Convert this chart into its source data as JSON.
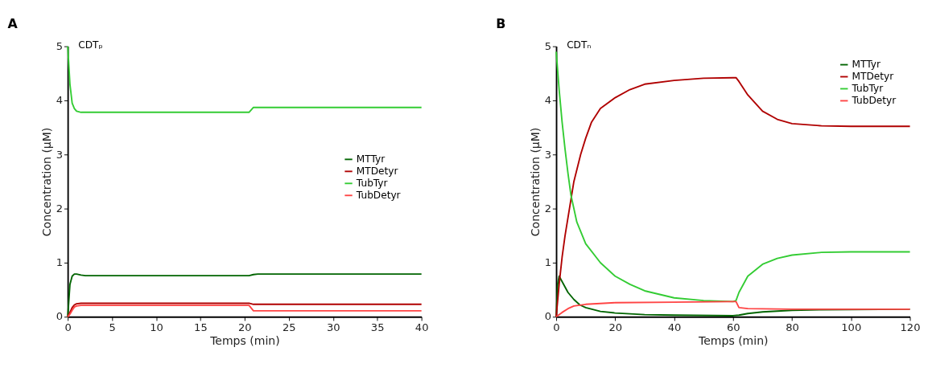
{
  "chart_data": [
    {
      "type": "line",
      "title": "A",
      "xlabel": "Temps (min)",
      "ylabel": "Concentration (μM)",
      "annotations": [
        "CDTₚ"
      ],
      "xlim": [
        0,
        40
      ],
      "xticks": [
        0,
        5,
        10,
        15,
        20,
        25,
        30,
        35,
        40
      ],
      "ylim": [
        0,
        5
      ],
      "yticks": [
        0,
        1,
        2,
        3,
        4,
        5
      ],
      "grid": false,
      "legend": "right",
      "marker": "none",
      "line_style": "solid",
      "series": [
        {
          "name": "MTTyr",
          "color": "#006400",
          "x": [
            0,
            0.25,
            0.5,
            0.75,
            1,
            1.5,
            2,
            3,
            5,
            10,
            15,
            20,
            20.5,
            21,
            21.5,
            22,
            25,
            30,
            35,
            40
          ],
          "values": [
            0,
            0.6,
            0.75,
            0.79,
            0.79,
            0.77,
            0.76,
            0.76,
            0.76,
            0.76,
            0.76,
            0.76,
            0.76,
            0.78,
            0.79,
            0.79,
            0.79,
            0.79,
            0.79,
            0.79
          ]
        },
        {
          "name": "MTDetyr",
          "color": "#b00000",
          "x": [
            0,
            0.25,
            0.5,
            0.75,
            1,
            1.5,
            2,
            3,
            5,
            10,
            15,
            20,
            20.5,
            21,
            21.5,
            22,
            25,
            30,
            35,
            40
          ],
          "values": [
            0,
            0.08,
            0.17,
            0.22,
            0.24,
            0.25,
            0.25,
            0.25,
            0.25,
            0.25,
            0.25,
            0.25,
            0.25,
            0.23,
            0.23,
            0.23,
            0.23,
            0.23,
            0.23,
            0.23
          ]
        },
        {
          "name": "TubTyr",
          "color": "#33cc33",
          "x": [
            0,
            0.25,
            0.5,
            0.75,
            1,
            1.5,
            2,
            3,
            5,
            10,
            15,
            20,
            20.5,
            21,
            21.5,
            22,
            25,
            30,
            35,
            40
          ],
          "values": [
            5,
            4.3,
            3.95,
            3.85,
            3.8,
            3.78,
            3.78,
            3.78,
            3.78,
            3.78,
            3.78,
            3.78,
            3.78,
            3.87,
            3.87,
            3.87,
            3.87,
            3.87,
            3.87,
            3.87
          ]
        },
        {
          "name": "TubDetyr",
          "color": "#ff4444",
          "x": [
            0,
            0.25,
            0.5,
            0.75,
            1,
            1.5,
            2,
            3,
            5,
            10,
            15,
            20,
            20.5,
            21,
            21.5,
            22,
            25,
            30,
            35,
            40
          ],
          "values": [
            0,
            0.05,
            0.12,
            0.18,
            0.2,
            0.21,
            0.21,
            0.21,
            0.21,
            0.21,
            0.21,
            0.21,
            0.21,
            0.11,
            0.11,
            0.11,
            0.11,
            0.11,
            0.11,
            0.11
          ]
        }
      ]
    },
    {
      "type": "line",
      "title": "B",
      "xlabel": "Temps (min)",
      "ylabel": "Concentration (μM)",
      "annotations": [
        "CDTₙ"
      ],
      "xlim": [
        0,
        120
      ],
      "xticks": [
        0,
        20,
        40,
        60,
        80,
        100,
        120
      ],
      "ylim": [
        0,
        5
      ],
      "yticks": [
        0,
        1,
        2,
        3,
        4,
        5
      ],
      "grid": false,
      "legend": "top right",
      "marker": "none",
      "line_style": "solid",
      "series": [
        {
          "name": "MTTyr",
          "color": "#006400",
          "x": [
            0,
            0.5,
            1,
            2,
            4,
            6,
            8,
            10,
            15,
            20,
            30,
            40,
            60,
            62,
            65,
            70,
            80,
            90,
            120
          ],
          "values": [
            0,
            0.6,
            0.75,
            0.65,
            0.45,
            0.32,
            0.22,
            0.17,
            0.1,
            0.07,
            0.04,
            0.03,
            0.02,
            0.03,
            0.06,
            0.09,
            0.12,
            0.13,
            0.14
          ]
        },
        {
          "name": "MTDetyr",
          "color": "#b00000",
          "x": [
            0,
            1,
            2,
            3,
            4.5,
            6,
            8.3,
            10,
            12,
            15,
            20,
            25,
            30,
            40,
            50,
            60,
            61,
            62,
            65,
            70,
            75,
            80,
            90,
            100,
            120
          ],
          "values": [
            0,
            0.6,
            1.1,
            1.5,
            2,
            2.5,
            3,
            3.3,
            3.6,
            3.85,
            4.05,
            4.2,
            4.3,
            4.37,
            4.41,
            4.42,
            4.42,
            4.35,
            4.1,
            3.8,
            3.65,
            3.57,
            3.53,
            3.52,
            3.52
          ]
        },
        {
          "name": "TubTyr",
          "color": "#33cc33",
          "x": [
            0,
            1,
            2,
            3,
            4,
            5,
            7,
            10,
            15,
            20,
            25,
            30,
            40,
            50,
            60,
            61,
            62,
            65,
            70,
            75,
            80,
            90,
            100,
            120
          ],
          "values": [
            4.9,
            4.2,
            3.6,
            3.1,
            2.65,
            2.25,
            1.75,
            1.35,
            1.0,
            0.75,
            0.6,
            0.48,
            0.35,
            0.3,
            0.28,
            0.3,
            0.45,
            0.75,
            0.97,
            1.08,
            1.14,
            1.19,
            1.2,
            1.2
          ]
        },
        {
          "name": "TubDetyr",
          "color": "#ff4444",
          "x": [
            0,
            2,
            4,
            6,
            10,
            20,
            40,
            60,
            61,
            62,
            65,
            80,
            120
          ],
          "values": [
            0,
            0.08,
            0.15,
            0.2,
            0.23,
            0.26,
            0.27,
            0.28,
            0.28,
            0.17,
            0.15,
            0.14,
            0.14
          ]
        }
      ]
    }
  ]
}
